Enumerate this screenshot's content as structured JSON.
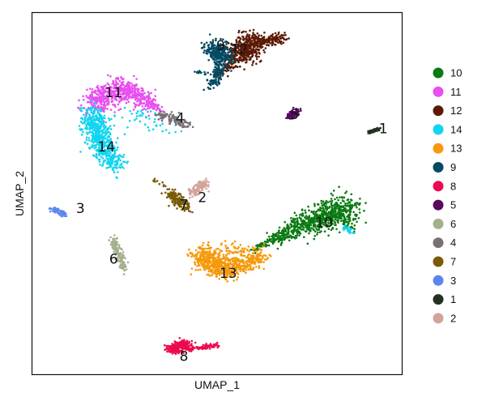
{
  "chart_data": {
    "type": "scatter",
    "title": "",
    "xlabel": "UMAP_1",
    "ylabel": "UMAP_2",
    "xlim": [
      0,
      100
    ],
    "ylim": [
      0,
      100
    ],
    "grid": false,
    "ticks": false,
    "legend_position": "right",
    "series": [
      {
        "name": "10",
        "color": "#0A7A12",
        "label_at": {
          "x": 79,
          "y": 42
        },
        "segments": [
          {
            "x0": 59,
            "y0": 34,
            "x1": 65,
            "y1": 37,
            "spread": 0.8,
            "n": 40
          },
          {
            "x0": 65,
            "y0": 37,
            "x1": 72,
            "y1": 41,
            "spread": 1.8,
            "n": 160
          },
          {
            "x0": 72,
            "y0": 41,
            "x1": 80,
            "y1": 44,
            "spread": 3.2,
            "n": 280
          },
          {
            "x0": 80,
            "y0": 44,
            "x1": 86,
            "y1": 46,
            "spread": 3.8,
            "n": 300
          },
          {
            "x0": 84,
            "y0": 44,
            "x1": 86,
            "y1": 40,
            "spread": 1.5,
            "n": 40
          }
        ]
      },
      {
        "name": "11",
        "color": "#E94FF0",
        "label_at": {
          "x": 22,
          "y": 78
        },
        "segments": [
          {
            "x0": 16,
            "y0": 75,
            "x1": 25,
            "y1": 79,
            "spread": 3.5,
            "n": 380
          },
          {
            "x0": 25,
            "y0": 79,
            "x1": 32,
            "y1": 75,
            "spread": 2.4,
            "n": 200
          },
          {
            "x0": 32,
            "y0": 75,
            "x1": 35,
            "y1": 73,
            "spread": 0.9,
            "n": 40
          }
        ]
      },
      {
        "name": "12",
        "color": "#5C1A05",
        "label_at": {
          "x": 56,
          "y": 90
        },
        "segments": [
          {
            "x0": 55,
            "y0": 88,
            "x1": 60,
            "y1": 92,
            "spread": 3.5,
            "n": 400
          },
          {
            "x0": 60,
            "y0": 92,
            "x1": 68,
            "y1": 93,
            "spread": 1.4,
            "n": 140
          },
          {
            "x0": 54,
            "y0": 86,
            "x1": 50,
            "y1": 83,
            "spread": 1.2,
            "n": 60
          }
        ]
      },
      {
        "name": "14",
        "color": "#12D4F0",
        "label_at": {
          "x": 20,
          "y": 63
        },
        "segments": [
          {
            "x0": 16,
            "y0": 72,
            "x1": 19,
            "y1": 63,
            "spread": 3.0,
            "n": 420
          },
          {
            "x0": 19,
            "y0": 63,
            "x1": 23,
            "y1": 58,
            "spread": 2.6,
            "n": 200
          },
          {
            "x0": 23,
            "y0": 71,
            "x1": 39,
            "y1": 70,
            "spread": 3.0,
            "n": 50
          },
          {
            "x0": 84,
            "y0": 41,
            "x1": 87,
            "y1": 39,
            "spread": 0.8,
            "n": 20
          }
        ]
      },
      {
        "name": "13",
        "color": "#F59A0C",
        "label_at": {
          "x": 53,
          "y": 28
        },
        "segments": [
          {
            "x0": 45,
            "y0": 33,
            "x1": 53,
            "y1": 29,
            "spread": 3.0,
            "n": 450
          },
          {
            "x0": 53,
            "y0": 29,
            "x1": 62,
            "y1": 33,
            "spread": 2.4,
            "n": 260
          },
          {
            "x0": 52,
            "y0": 36,
            "x1": 57,
            "y1": 34,
            "spread": 1.5,
            "n": 40
          }
        ]
      },
      {
        "name": "9",
        "color": "#044A63",
        "label_at": {
          "x": 51,
          "y": 91
        },
        "segments": [
          {
            "x0": 48,
            "y0": 90,
            "x1": 53,
            "y1": 88,
            "spread": 2.6,
            "n": 260
          },
          {
            "x0": 51,
            "y0": 86,
            "x1": 49,
            "y1": 80,
            "spread": 1.8,
            "n": 120
          },
          {
            "x0": 44,
            "y0": 84,
            "x1": 47,
            "y1": 83,
            "spread": 0.6,
            "n": 12
          }
        ]
      },
      {
        "name": "8",
        "color": "#EC0B4F",
        "label_at": {
          "x": 41,
          "y": 5
        },
        "segments": [
          {
            "x0": 37,
            "y0": 7,
            "x1": 42,
            "y1": 8,
            "spread": 1.5,
            "n": 240
          },
          {
            "x0": 42,
            "y0": 7,
            "x1": 50,
            "y1": 8,
            "spread": 0.6,
            "n": 80
          }
        ]
      },
      {
        "name": "5",
        "color": "#5A0860",
        "label_at": {
          "x": 71,
          "y": 72
        },
        "segments": [
          {
            "x0": 69,
            "y0": 71,
            "x1": 72,
            "y1": 73,
            "spread": 1.0,
            "n": 100
          }
        ]
      },
      {
        "name": "6",
        "color": "#A3B08C",
        "label_at": {
          "x": 22,
          "y": 32
        },
        "segments": [
          {
            "x0": 22,
            "y0": 37,
            "x1": 25,
            "y1": 29,
            "spread": 1.1,
            "n": 140
          }
        ]
      },
      {
        "name": "4",
        "color": "#797077",
        "label_at": {
          "x": 40,
          "y": 71
        },
        "segments": [
          {
            "x0": 34,
            "y0": 72,
            "x1": 42,
            "y1": 69,
            "spread": 1.1,
            "n": 120
          }
        ]
      },
      {
        "name": "7",
        "color": "#7A5A08",
        "label_at": {
          "x": 41,
          "y": 47
        },
        "segments": [
          {
            "x0": 37,
            "y0": 50,
            "x1": 42,
            "y1": 46,
            "spread": 1.5,
            "n": 150
          },
          {
            "x0": 32,
            "y0": 54,
            "x1": 36,
            "y1": 52,
            "spread": 0.5,
            "n": 12
          }
        ]
      },
      {
        "name": "3",
        "color": "#5C86EE",
        "label_at": {
          "x": 13,
          "y": 46
        },
        "segments": [
          {
            "x0": 5,
            "y0": 46,
            "x1": 9,
            "y1": 44,
            "spread": 0.7,
            "n": 60
          }
        ]
      },
      {
        "name": "1",
        "color": "#233020",
        "label_at": {
          "x": 95,
          "y": 68
        },
        "segments": [
          {
            "x0": 91,
            "y0": 67,
            "x1": 94,
            "y1": 68,
            "spread": 0.6,
            "n": 50
          }
        ]
      },
      {
        "name": "2",
        "color": "#D3A39A",
        "label_at": {
          "x": 46,
          "y": 49
        },
        "segments": [
          {
            "x0": 43,
            "y0": 50,
            "x1": 47,
            "y1": 53,
            "spread": 1.3,
            "n": 110
          }
        ]
      }
    ]
  }
}
